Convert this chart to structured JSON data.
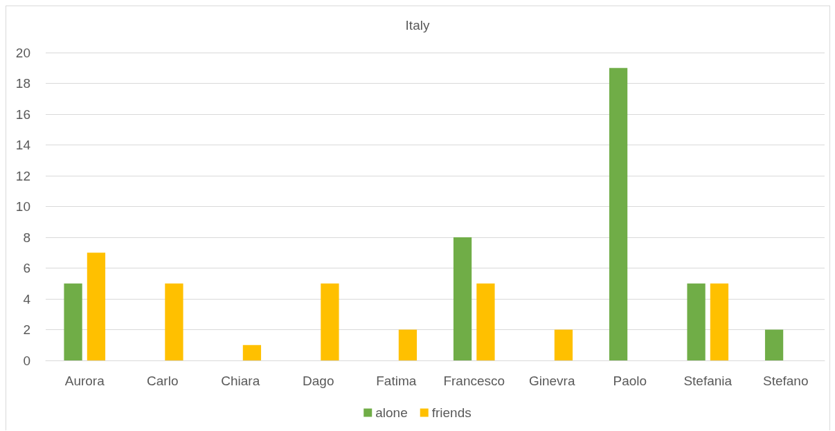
{
  "chart_data": {
    "type": "bar",
    "title": "Italy",
    "categories": [
      "Aurora",
      "Carlo",
      "Chiara",
      "Dago",
      "Fatima",
      "Francesco",
      "Ginevra",
      "Paolo",
      "Stefania",
      "Stefano"
    ],
    "series": [
      {
        "name": "alone",
        "color": "#70ad47",
        "values": [
          5,
          null,
          null,
          null,
          null,
          8,
          null,
          19,
          5,
          2
        ]
      },
      {
        "name": "friends",
        "color": "#ffc000",
        "values": [
          7,
          5,
          1,
          5,
          2,
          5,
          2,
          null,
          5,
          null
        ]
      }
    ],
    "ylim": [
      0,
      20
    ],
    "yticks": [
      0,
      2,
      4,
      6,
      8,
      10,
      12,
      14,
      16,
      18,
      20
    ],
    "grid": "y",
    "legend": "bottom"
  }
}
